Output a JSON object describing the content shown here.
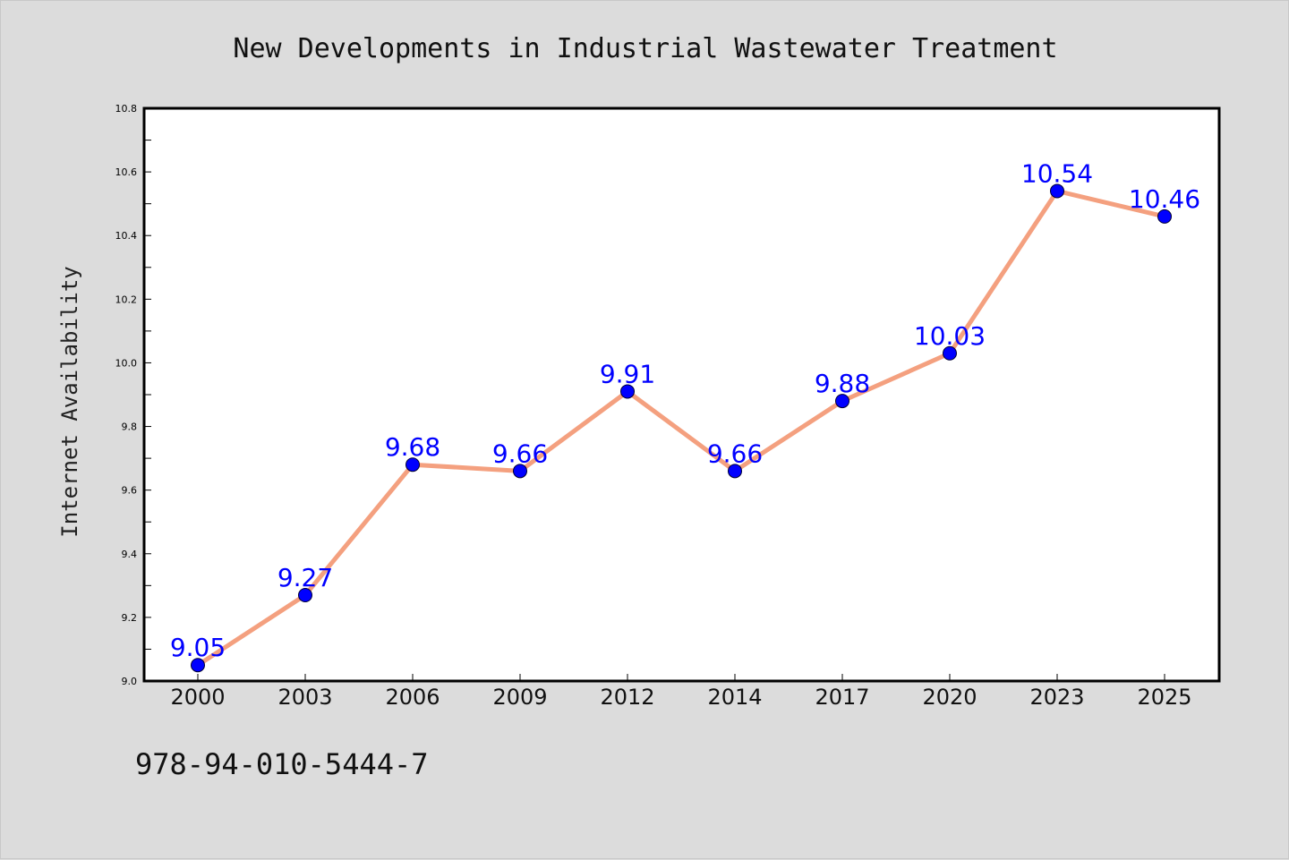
{
  "chart_data": {
    "type": "line",
    "title": "New Developments in Industrial Wastewater Treatment",
    "xlabel": "",
    "ylabel": "Internet Availability",
    "categories": [
      "2000",
      "2003",
      "2006",
      "2009",
      "2012",
      "2014",
      "2017",
      "2020",
      "2023",
      "2025"
    ],
    "series": [
      {
        "values": [
          9.05,
          9.27,
          9.68,
          9.66,
          9.91,
          9.66,
          9.88,
          10.03,
          10.54,
          10.46
        ],
        "data_labels": [
          "9.05",
          "9.27",
          "9.68",
          "9.66",
          "9.91",
          "9.66",
          "9.88",
          "10.03",
          "10.54",
          "10.46"
        ],
        "line_color": "#f4a07f",
        "marker_color": "#0000ff"
      }
    ],
    "ylim": [
      9.0,
      10.8
    ],
    "yticks": [
      "9.0",
      "9.2",
      "9.4",
      "9.6",
      "9.8",
      "10.0",
      "10.2",
      "10.4",
      "10.6",
      "10.8"
    ],
    "grid": false,
    "legend": "none",
    "label_color": "#0000ff"
  },
  "footer": {
    "code": "978-94-010-5444-7"
  },
  "colors": {
    "background": "#dcdcdc",
    "plot_background": "#ffffff",
    "axis": "#000000"
  }
}
